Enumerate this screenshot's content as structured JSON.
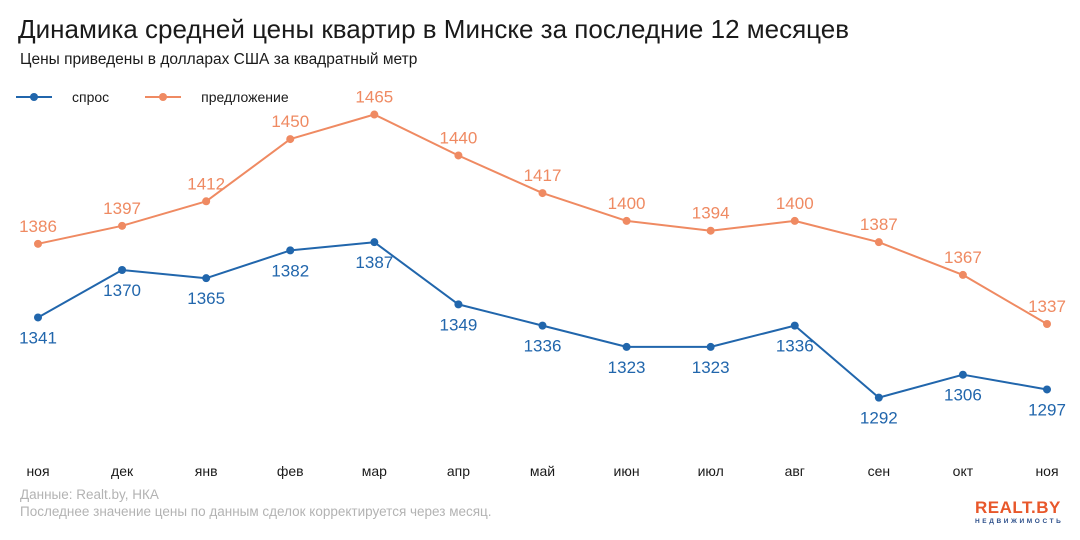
{
  "header": {
    "title": "Динамика средней цены квартир в Минске за последние 12 месяцев",
    "subtitle": "Цены приведены в долларах США за квадратный метр"
  },
  "chart_data": {
    "type": "line",
    "title": "Динамика средней цены квартир в Минске за последние 12 месяцев",
    "subtitle": "Цены приведены в долларах США за квадратный метр",
    "categories": [
      "ноя",
      "дек",
      "янв",
      "фев",
      "мар",
      "апр",
      "май",
      "июн",
      "июл",
      "авг",
      "сен",
      "окт",
      "ноя"
    ],
    "series": [
      {
        "name": "спрос",
        "color": "#2166ac",
        "values": [
          1341,
          1370,
          1365,
          1382,
          1387,
          1349,
          1336,
          1323,
          1323,
          1336,
          1292,
          1306,
          1297
        ]
      },
      {
        "name": "предложение",
        "color": "#ef8a62",
        "values": [
          1386,
          1397,
          1412,
          1450,
          1465,
          1440,
          1417,
          1400,
          1394,
          1400,
          1387,
          1367,
          1337
        ]
      }
    ],
    "ylim": [
      1205,
      1535
    ],
    "grid": false,
    "legend_position": "top-left",
    "xlabel": "",
    "ylabel": ""
  },
  "footer": {
    "source_line1": "Данные: Realt.by, НКА",
    "source_line2": "Последнее значение цены по данным сделок корректируется через месяц."
  },
  "logo": {
    "main": "REALT.BY",
    "sub": "НЕДВИЖИМОСТЬ"
  }
}
